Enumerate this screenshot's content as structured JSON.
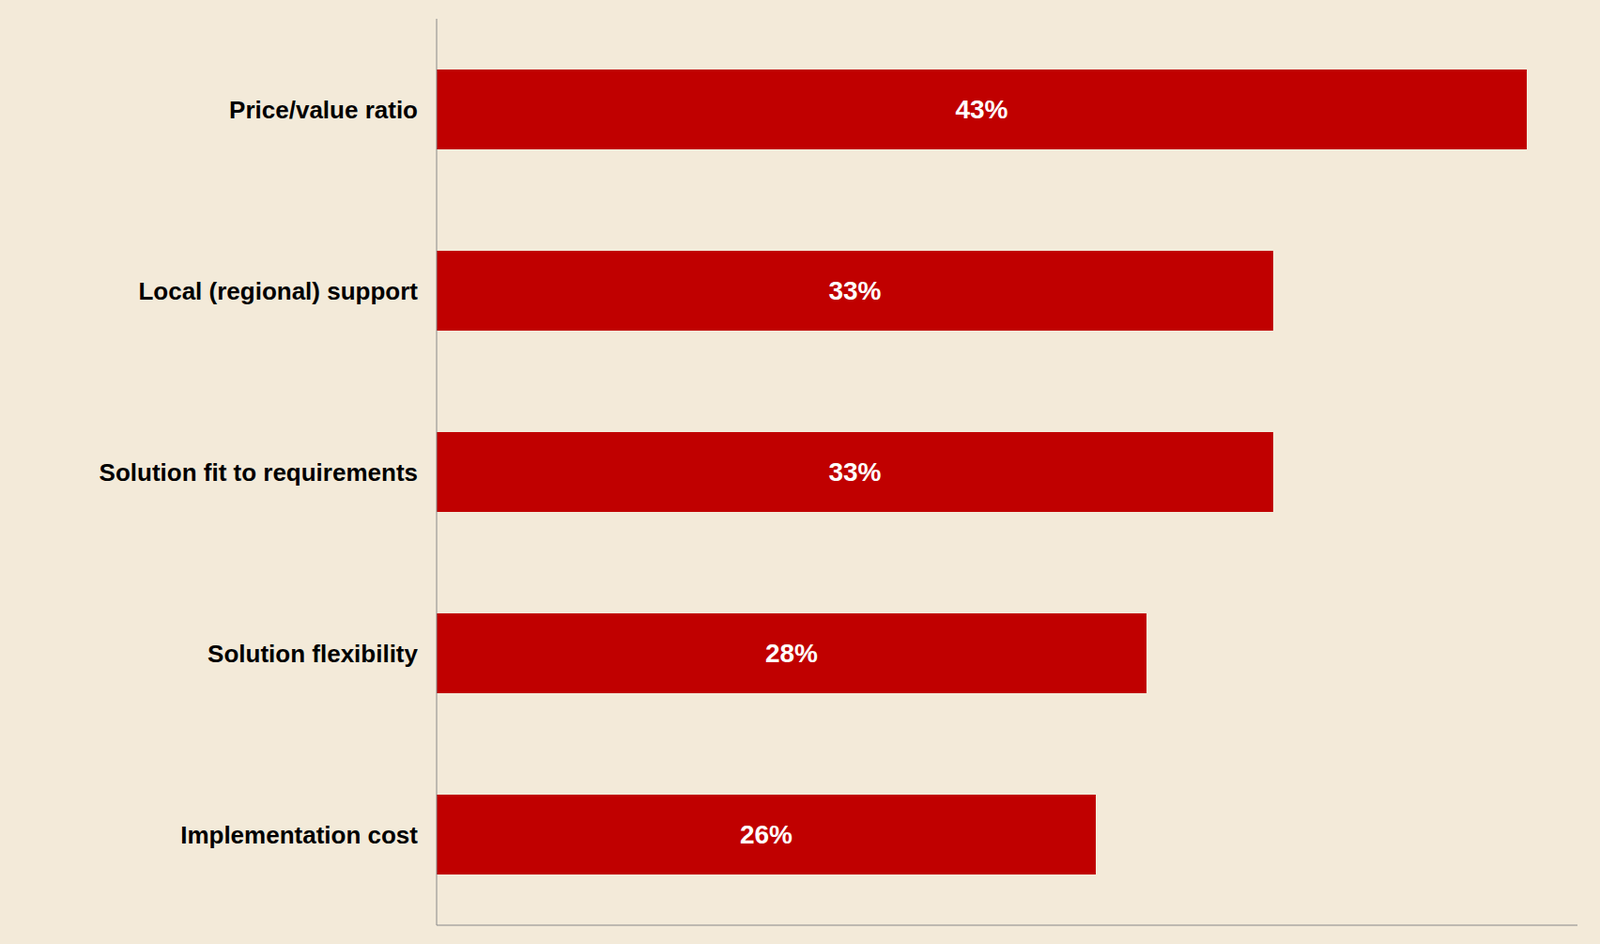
{
  "chart_data": {
    "type": "bar",
    "orientation": "horizontal",
    "categories": [
      "Price/value ratio",
      "Local (regional) support",
      "Solution fit to requirements",
      "Solution flexibility",
      "Implementation cost"
    ],
    "values": [
      43,
      33,
      33,
      28,
      26
    ],
    "value_labels": [
      "43%",
      "33%",
      "33%",
      "28%",
      "26%"
    ],
    "color": "#c00000",
    "xlim": [
      0,
      45
    ],
    "data_labels": true,
    "tick_labels": "y",
    "grid": false
  }
}
